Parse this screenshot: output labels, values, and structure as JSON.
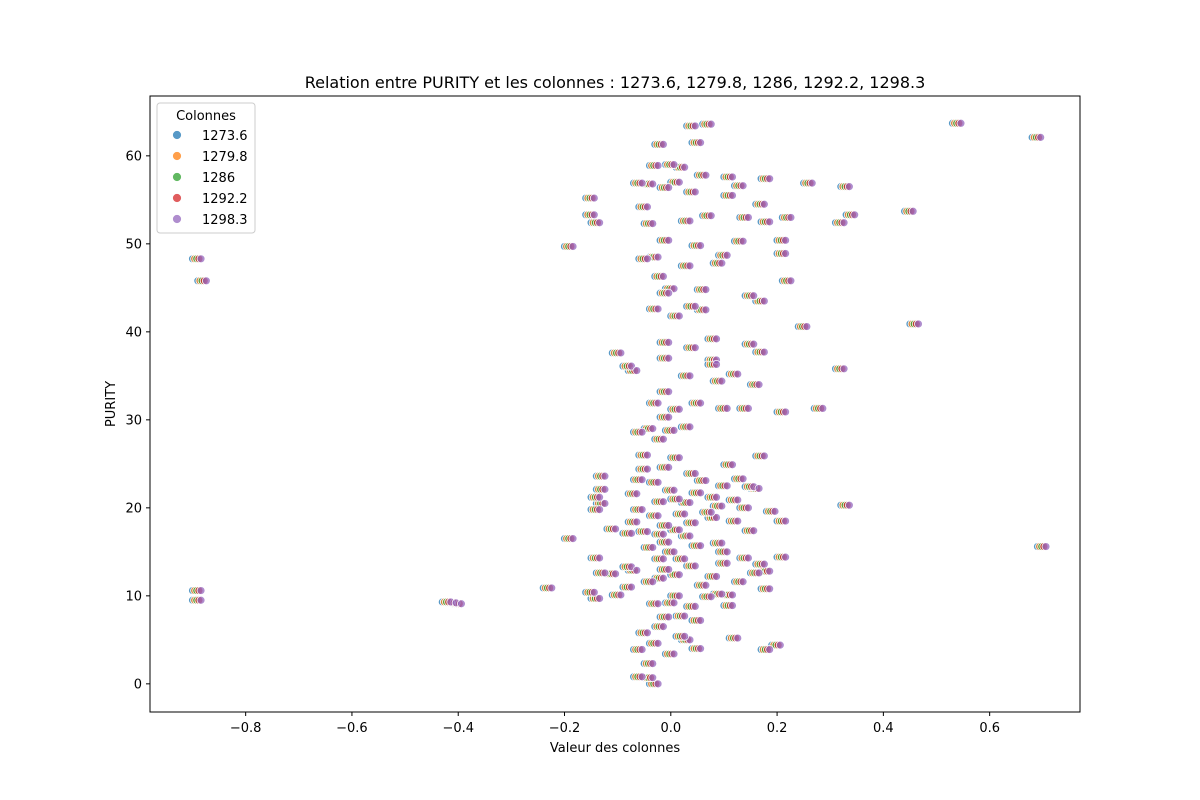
{
  "chart_data": {
    "type": "scatter",
    "title": "Relation entre PURITY et les colonnes : 1273.6, 1279.8, 1286, 1292.2, 1298.3",
    "xlabel": "Valeur des colonnes",
    "ylabel": "PURITY",
    "xlim": [
      -0.98,
      0.77
    ],
    "ylim": [
      -3.2,
      66.8
    ],
    "xticks": [
      -0.8,
      -0.6,
      -0.4,
      -0.2,
      0.0,
      0.2,
      0.4,
      0.6
    ],
    "xtick_labels": [
      "−0.8",
      "−0.6",
      "−0.4",
      "−0.2",
      "0.0",
      "0.2",
      "0.4",
      "0.6"
    ],
    "yticks": [
      0,
      10,
      20,
      30,
      40,
      50,
      60
    ],
    "yticks_labels": [
      "0",
      "10",
      "20",
      "30",
      "40",
      "50",
      "60"
    ],
    "grid": false,
    "legend": {
      "title": "Colonnes",
      "placement": "top-left"
    },
    "point_alpha": 0.75,
    "series": [
      {
        "name": "1273.6",
        "color": "#1f77b4",
        "offset": 0.0
      },
      {
        "name": "1279.8",
        "color": "#ff7f0e",
        "offset": 0.004
      },
      {
        "name": "1286",
        "color": "#2ca02c",
        "offset": 0.008
      },
      {
        "name": "1292.2",
        "color": "#d62728",
        "offset": 0.012
      },
      {
        "name": "1298.3",
        "color": "#9467bd",
        "offset": 0.016
      }
    ],
    "points": [
      [
        -0.9,
        48.3
      ],
      [
        -0.89,
        45.8
      ],
      [
        -0.9,
        10.6
      ],
      [
        -0.9,
        9.5
      ],
      [
        -0.43,
        9.3
      ],
      [
        -0.42,
        9.2
      ],
      [
        -0.41,
        9.1
      ],
      [
        -0.24,
        10.9
      ],
      [
        -0.2,
        49.7
      ],
      [
        -0.2,
        16.5
      ],
      [
        0.53,
        63.7
      ],
      [
        0.68,
        62.1
      ],
      [
        0.44,
        53.7
      ],
      [
        0.45,
        40.9
      ],
      [
        0.69,
        15.6
      ],
      [
        0.32,
        20.3
      ],
      [
        0.32,
        56.5
      ],
      [
        0.31,
        52.4
      ],
      [
        0.33,
        53.3
      ],
      [
        0.31,
        35.8
      ],
      [
        0.25,
        56.9
      ],
      [
        0.24,
        40.6
      ],
      [
        0.27,
        31.3
      ],
      [
        0.2,
        30.9
      ],
      [
        0.21,
        45.8
      ],
      [
        0.2,
        50.4
      ],
      [
        0.21,
        53.0
      ],
      [
        0.2,
        48.9
      ],
      [
        0.2,
        18.5
      ],
      [
        0.2,
        14.4
      ],
      [
        0.19,
        4.4
      ],
      [
        0.17,
        3.9
      ],
      [
        0.17,
        10.8
      ],
      [
        0.17,
        57.4
      ],
      [
        0.16,
        54.5
      ],
      [
        0.17,
        52.5
      ],
      [
        0.16,
        43.5
      ],
      [
        0.16,
        37.7
      ],
      [
        0.15,
        34.0
      ],
      [
        0.14,
        44.1
      ],
      [
        0.14,
        38.6
      ],
      [
        0.13,
        31.3
      ],
      [
        0.13,
        53.0
      ],
      [
        0.12,
        50.3
      ],
      [
        0.12,
        56.6
      ],
      [
        0.11,
        35.2
      ],
      [
        0.11,
        5.2
      ],
      [
        0.1,
        57.6
      ],
      [
        0.1,
        55.5
      ],
      [
        0.09,
        48.7
      ],
      [
        0.08,
        10.2
      ],
      [
        0.08,
        47.8
      ],
      [
        0.07,
        36.8
      ],
      [
        0.07,
        39.2
      ],
      [
        0.06,
        63.6
      ],
      [
        0.06,
        53.2
      ],
      [
        0.05,
        57.8
      ],
      [
        0.05,
        42.5
      ],
      [
        0.04,
        61.5
      ],
      [
        0.03,
        63.4
      ],
      [
        0.03,
        55.9
      ],
      [
        0.02,
        52.6
      ],
      [
        0.01,
        58.7
      ],
      [
        0.0,
        57.0
      ],
      [
        -0.01,
        59.0
      ],
      [
        -0.02,
        56.4
      ],
      [
        -0.03,
        61.3
      ],
      [
        -0.04,
        58.9
      ],
      [
        -0.05,
        56.8
      ],
      [
        -0.06,
        54.2
      ],
      [
        -0.07,
        56.9
      ],
      [
        -0.05,
        52.3
      ],
      [
        -0.02,
        50.4
      ],
      [
        -0.04,
        48.5
      ],
      [
        -0.06,
        48.3
      ],
      [
        -0.03,
        46.3
      ],
      [
        -0.01,
        44.9
      ],
      [
        0.02,
        47.5
      ],
      [
        0.04,
        49.8
      ],
      [
        0.05,
        44.8
      ],
      [
        -0.02,
        44.4
      ],
      [
        -0.04,
        42.6
      ],
      [
        0.0,
        41.8
      ],
      [
        0.03,
        42.9
      ],
      [
        -0.16,
        55.2
      ],
      [
        -0.16,
        53.3
      ],
      [
        -0.15,
        52.4
      ],
      [
        -0.02,
        38.8
      ],
      [
        0.03,
        38.2
      ],
      [
        -0.11,
        37.6
      ],
      [
        -0.09,
        36.1
      ],
      [
        -0.08,
        35.6
      ],
      [
        -0.02,
        37.0
      ],
      [
        0.02,
        35.0
      ],
      [
        0.07,
        36.3
      ],
      [
        0.08,
        34.4
      ],
      [
        -0.02,
        33.2
      ],
      [
        0.0,
        31.2
      ],
      [
        0.04,
        31.9
      ],
      [
        0.09,
        31.3
      ],
      [
        -0.04,
        31.9
      ],
      [
        -0.02,
        30.3
      ],
      [
        0.02,
        29.2
      ],
      [
        -0.05,
        29.0
      ],
      [
        -0.03,
        27.8
      ],
      [
        -0.01,
        28.8
      ],
      [
        0.14,
        22.4
      ],
      [
        0.15,
        22.2
      ],
      [
        0.13,
        20.0
      ],
      [
        0.16,
        25.9
      ],
      [
        0.12,
        23.3
      ],
      [
        0.1,
        24.9
      ],
      [
        0.09,
        22.5
      ],
      [
        0.08,
        20.2
      ],
      [
        0.07,
        18.9
      ],
      [
        0.11,
        18.5
      ],
      [
        0.14,
        17.4
      ],
      [
        0.08,
        16.0
      ],
      [
        0.09,
        15.0
      ],
      [
        0.13,
        14.3
      ],
      [
        0.16,
        13.6
      ],
      [
        0.15,
        12.6
      ],
      [
        0.12,
        11.6
      ],
      [
        0.1,
        10.1
      ],
      [
        0.07,
        12.2
      ],
      [
        0.06,
        9.9
      ],
      [
        0.05,
        11.2
      ],
      [
        0.04,
        4.0
      ],
      [
        0.02,
        5.0
      ],
      [
        0.01,
        7.7
      ],
      [
        0.03,
        8.8
      ],
      [
        -0.14,
        23.6
      ],
      [
        -0.14,
        22.1
      ],
      [
        -0.15,
        21.2
      ],
      [
        -0.14,
        20.5
      ],
      [
        -0.15,
        19.8
      ],
      [
        -0.12,
        17.6
      ],
      [
        -0.15,
        14.3
      ],
      [
        -0.14,
        12.6
      ],
      [
        -0.15,
        9.7
      ],
      [
        -0.16,
        10.4
      ],
      [
        -0.11,
        10.1
      ],
      [
        -0.12,
        12.5
      ],
      [
        -0.09,
        13.3
      ],
      [
        -0.09,
        17.1
      ],
      [
        -0.08,
        18.4
      ],
      [
        -0.07,
        19.8
      ],
      [
        -0.08,
        21.6
      ],
      [
        -0.07,
        23.2
      ],
      [
        -0.06,
        26.0
      ],
      [
        -0.07,
        28.6
      ],
      [
        -0.06,
        24.4
      ],
      [
        -0.06,
        5.8
      ],
      [
        -0.07,
        3.9
      ],
      [
        -0.07,
        0.8
      ],
      [
        -0.05,
        0.7
      ],
      [
        -0.04,
        0.0
      ],
      [
        -0.05,
        2.3
      ],
      [
        -0.04,
        4.6
      ],
      [
        -0.03,
        6.5
      ],
      [
        -0.02,
        7.6
      ],
      [
        -0.01,
        9.2
      ],
      [
        0.0,
        10.0
      ],
      [
        -0.01,
        3.4
      ],
      [
        0.01,
        5.4
      ],
      [
        0.04,
        7.2
      ],
      [
        0.0,
        12.4
      ],
      [
        -0.03,
        14.2
      ],
      [
        -0.02,
        16.1
      ],
      [
        0.0,
        17.5
      ],
      [
        0.01,
        19.3
      ],
      [
        -0.03,
        20.7
      ],
      [
        -0.04,
        22.9
      ],
      [
        -0.02,
        24.6
      ],
      [
        0.0,
        25.7
      ],
      [
        -0.01,
        22.0
      ],
      [
        0.02,
        20.6
      ],
      [
        0.03,
        18.3
      ],
      [
        0.04,
        21.7
      ],
      [
        0.05,
        23.1
      ],
      [
        0.04,
        15.7
      ],
      [
        0.03,
        13.4
      ],
      [
        -0.05,
        15.5
      ],
      [
        -0.05,
        11.6
      ],
      [
        -0.04,
        9.1
      ],
      [
        -0.06,
        17.3
      ],
      [
        -0.04,
        19.1
      ],
      [
        -0.03,
        12.0
      ],
      [
        -0.02,
        13.0
      ],
      [
        -0.01,
        15.0
      ],
      [
        0.01,
        14.2
      ],
      [
        0.02,
        16.8
      ],
      [
        -0.02,
        18.0
      ],
      [
        -0.03,
        17.0
      ],
      [
        0.0,
        21.0
      ],
      [
        0.06,
        19.5
      ],
      [
        0.07,
        21.2
      ],
      [
        0.03,
        23.9
      ],
      [
        -0.08,
        12.9
      ],
      [
        -0.09,
        11.0
      ],
      [
        0.1,
        8.9
      ],
      [
        0.09,
        13.7
      ],
      [
        0.11,
        20.9
      ],
      [
        0.18,
        19.6
      ],
      [
        0.17,
        12.8
      ]
    ]
  }
}
